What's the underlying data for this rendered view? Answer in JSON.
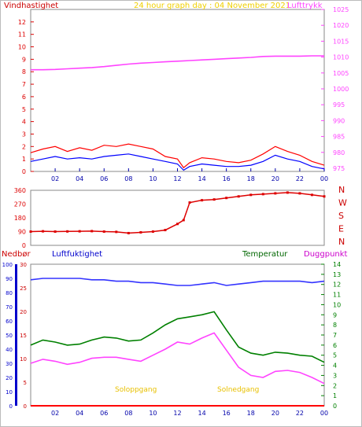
{
  "chart_data": [
    {
      "type": "line",
      "title": "24 hour graph day : 04 November 2021",
      "left_label": "Vindhastighet",
      "right_label": "Lufttrykk",
      "x": [
        0,
        1,
        2,
        3,
        4,
        5,
        6,
        7,
        8,
        9,
        10,
        11,
        12,
        12.5,
        13,
        14,
        15,
        16,
        17,
        18,
        19,
        20,
        21,
        22,
        23,
        24
      ],
      "x_ticks": [
        "02",
        "04",
        "06",
        "08",
        "10",
        "12",
        "14",
        "16",
        "18",
        "20",
        "22",
        "00"
      ],
      "y_left_ticks": [
        "0",
        "1",
        "2",
        "3",
        "4",
        "5",
        "6",
        "7",
        "8",
        "9",
        "10",
        "11",
        "12"
      ],
      "y_right_ticks": [
        "975",
        "980",
        "985",
        "990",
        "995",
        "1000",
        "1005",
        "1010",
        "1015",
        "1020",
        "1025"
      ],
      "ylim_left": [
        0,
        13
      ],
      "ylim_right": [
        974,
        1025
      ],
      "series": [
        {
          "name": "Vindhastighet",
          "axis": "left",
          "color": "#ff0000",
          "values": [
            1.5,
            1.8,
            2.0,
            1.6,
            1.9,
            1.7,
            2.1,
            2.0,
            2.2,
            2.0,
            1.8,
            1.2,
            1.0,
            0.3,
            0.7,
            1.1,
            1.0,
            0.8,
            0.7,
            0.9,
            1.4,
            2.0,
            1.6,
            1.3,
            0.8,
            0.5
          ]
        },
        {
          "name": "Vindretning-middel",
          "axis": "left",
          "color": "#0000ff",
          "values": [
            0.8,
            1.0,
            1.2,
            1.0,
            1.1,
            1.0,
            1.2,
            1.3,
            1.4,
            1.2,
            1.0,
            0.8,
            0.6,
            0.1,
            0.4,
            0.6,
            0.5,
            0.4,
            0.4,
            0.5,
            0.8,
            1.3,
            1.0,
            0.8,
            0.4,
            0.2
          ]
        },
        {
          "name": "Lufttrykk",
          "axis": "right",
          "color": "#ff44ff",
          "values": [
            1006.0,
            1006.0,
            1006.1,
            1006.3,
            1006.5,
            1006.7,
            1007.0,
            1007.4,
            1007.8,
            1008.1,
            1008.3,
            1008.5,
            1008.7,
            1008.8,
            1008.9,
            1009.1,
            1009.3,
            1009.5,
            1009.7,
            1009.9,
            1010.2,
            1010.3,
            1010.3,
            1010.3,
            1010.4,
            1010.4
          ]
        }
      ]
    },
    {
      "type": "scatter",
      "title": "",
      "x": [
        0,
        1,
        2,
        3,
        4,
        5,
        6,
        7,
        8,
        9,
        10,
        11,
        12,
        12.5,
        13,
        14,
        15,
        16,
        17,
        18,
        19,
        20,
        21,
        22,
        23,
        24
      ],
      "y_ticks": [
        "0",
        "90",
        "180",
        "270",
        "360"
      ],
      "ylim": [
        0,
        360
      ],
      "compass_labels": [
        "N",
        "W",
        "S",
        "E",
        "N"
      ],
      "series": [
        {
          "name": "Vindretning",
          "color": "#dd0000",
          "values": [
            90,
            92,
            90,
            91,
            92,
            93,
            90,
            88,
            80,
            85,
            90,
            100,
            140,
            165,
            280,
            295,
            300,
            310,
            320,
            330,
            335,
            340,
            345,
            340,
            330,
            320
          ]
        }
      ]
    },
    {
      "type": "line",
      "title": "",
      "labels": [
        "Nedbør",
        "Luftfuktighet",
        "Temperatur",
        "Duggpunkt"
      ],
      "x": [
        0,
        1,
        2,
        3,
        4,
        5,
        6,
        7,
        8,
        9,
        10,
        11,
        12,
        13,
        14,
        15,
        16,
        17,
        18,
        19,
        20,
        21,
        22,
        23,
        24
      ],
      "y_ticks_left_outer": [
        "0",
        "10",
        "20",
        "30",
        "40",
        "50",
        "60",
        "70",
        "80",
        "90",
        "100"
      ],
      "y_ticks_left_inner": [
        "0",
        "5",
        "10",
        "15",
        "20",
        "25",
        "30"
      ],
      "y_ticks_right": [
        "0",
        "1",
        "2",
        "3",
        "4",
        "5",
        "6",
        "7",
        "8",
        "9",
        "10",
        "11",
        "12",
        "13",
        "14"
      ],
      "series": [
        {
          "name": "Nedbør",
          "axis": "left_inner",
          "color": "#ff0000",
          "values": [
            0,
            0,
            0,
            0,
            0,
            0,
            0,
            0,
            0,
            0,
            0,
            0,
            0,
            0,
            0,
            0,
            0,
            0,
            0,
            0,
            0,
            0,
            0,
            0,
            0
          ]
        },
        {
          "name": "Luftfuktighet",
          "axis": "left_outer",
          "color": "#3333ff",
          "values": [
            89,
            90,
            90,
            90,
            90,
            89,
            89,
            88,
            88,
            87,
            87,
            86,
            85,
            85,
            86,
            87,
            85,
            86,
            87,
            88,
            88,
            88,
            88,
            87,
            88
          ]
        },
        {
          "name": "Temperatur",
          "axis": "right",
          "color": "#008000",
          "values": [
            6.0,
            6.5,
            6.3,
            6.0,
            6.1,
            6.5,
            6.8,
            6.7,
            6.4,
            6.5,
            7.2,
            8.0,
            8.6,
            8.8,
            9.0,
            9.3,
            7.5,
            5.8,
            5.2,
            5.0,
            5.3,
            5.2,
            5.0,
            4.9,
            4.3
          ]
        },
        {
          "name": "Duggpunkt",
          "axis": "right",
          "color": "#ff44ff",
          "values": [
            4.2,
            4.6,
            4.4,
            4.1,
            4.3,
            4.7,
            4.8,
            4.8,
            4.6,
            4.4,
            5.0,
            5.6,
            6.3,
            6.1,
            6.7,
            7.2,
            5.5,
            3.8,
            3.0,
            2.8,
            3.4,
            3.5,
            3.3,
            2.8,
            2.2
          ]
        }
      ],
      "annotations": [
        "Soloppgang",
        "Solnedgang"
      ]
    }
  ]
}
